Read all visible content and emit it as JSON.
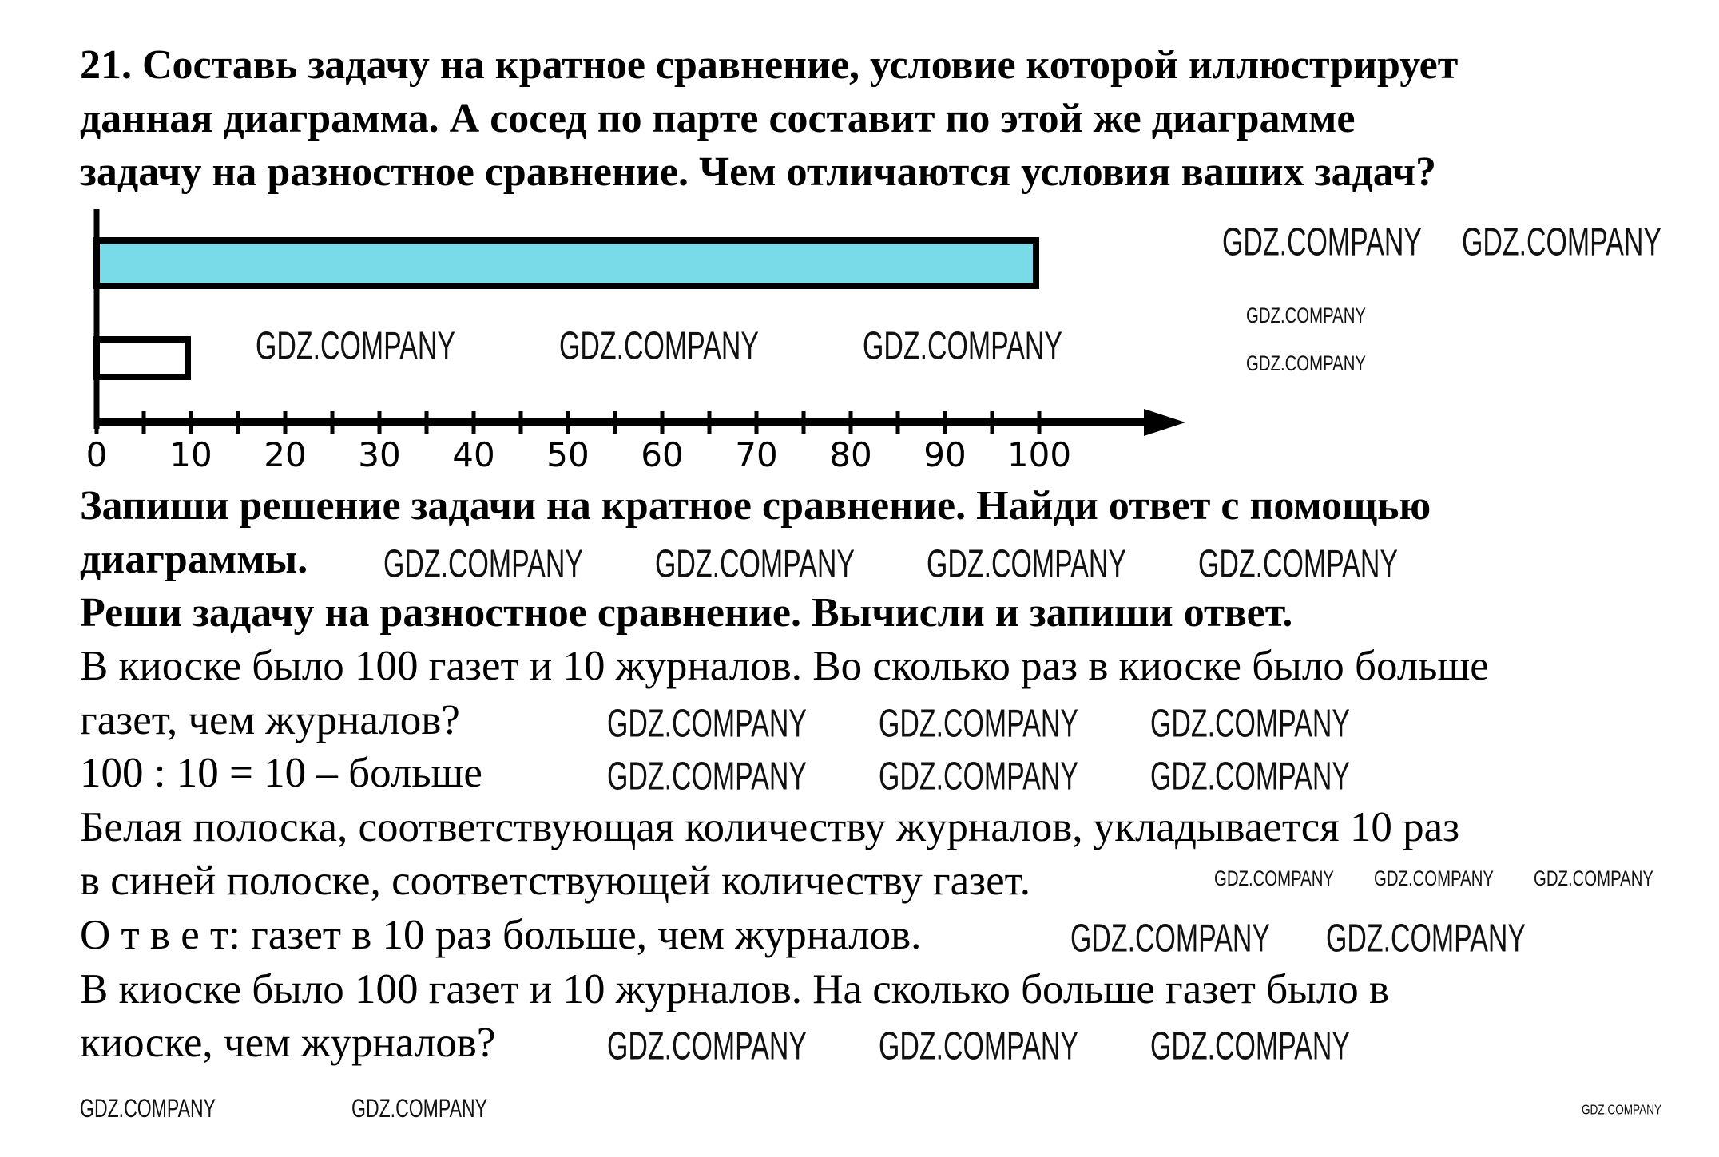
{
  "task": {
    "title_lines": [
      "21. Составь задачу на кратное сравнение, условие которой иллюстрирует",
      "данная диаграмма. А сосед по парте составит по этой же диаграмме",
      "задачу на разностное сравнение. Чем отличаются условия ваших задач?"
    ],
    "instructions": [
      "Запиши решение задачи на кратное сравнение. Найди ответ с помощью",
      "диаграммы.",
      "Реши задачу на разностное сравнение. Вычисли и запиши ответ."
    ],
    "solution_lines": [
      "В киоске было 100 газет и 10 журналов. Во сколько раз в киоске было больше",
      "газет, чем журналов?",
      "100 : 10 = 10 – больше",
      "Белая полоска, соответствующая количеству журналов, укладывается 10 раз",
      "в синей полоске, соответствующей количеству газет.",
      "О т в е т: газет в 10 раз больше, чем журналов.",
      "В киоске было 100 газет и 10 журналов. На сколько больше газет было в",
      "киоске, чем журналов?"
    ]
  },
  "chart_data": {
    "type": "bar",
    "orientation": "horizontal",
    "values": [
      100,
      10
    ],
    "bar_colors": [
      "#79dbe8",
      "#ffffff"
    ],
    "x_ticks": [
      "0",
      "10",
      "20",
      "30",
      "40",
      "50",
      "60",
      "70",
      "80",
      "90",
      "100"
    ],
    "xlim": [
      0,
      100
    ],
    "minor_tick_step": 5,
    "grid": false
  },
  "watermark": {
    "text": "GDZ.COMPANY"
  }
}
